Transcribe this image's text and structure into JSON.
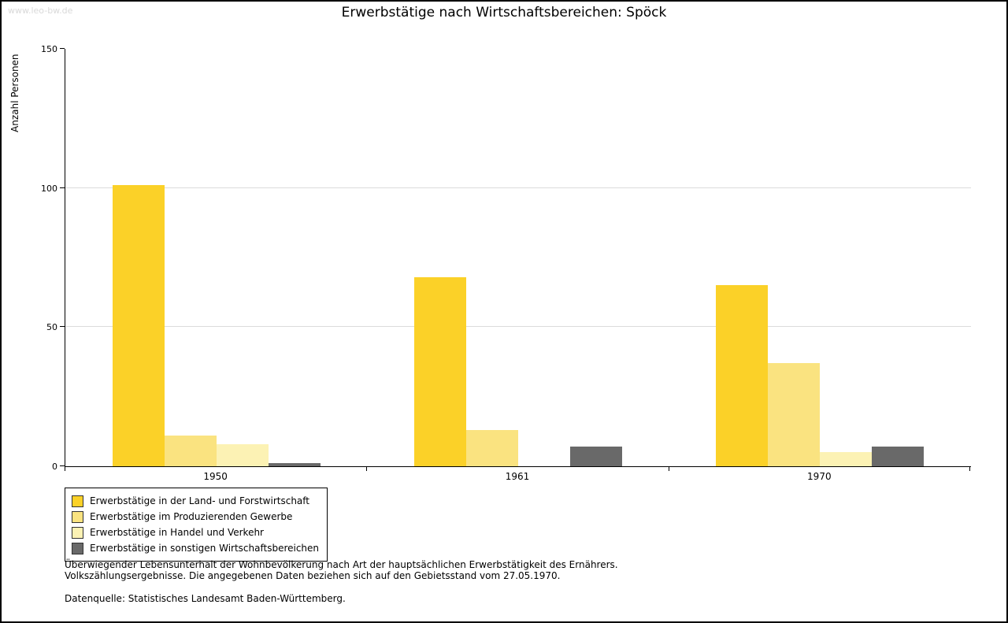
{
  "watermark": "www.leo-bw.de",
  "title": "Erwerbstätige nach Wirtschaftsbereichen: Spöck",
  "chart_data": {
    "type": "bar",
    "title": "Erwerbstätige nach Wirtschaftsbereichen: Spöck",
    "xlabel": "",
    "ylabel": "Anzahl Personen",
    "ylim": [
      0,
      150
    ],
    "yticks": [
      0,
      50,
      100,
      150
    ],
    "grid": true,
    "legend_position": "bottom-left",
    "categories": [
      "1950",
      "1961",
      "1970"
    ],
    "series": [
      {
        "name": "Erwerbstätige in der Land- und Forstwirtschaft",
        "color": "#FBD128",
        "values": [
          101,
          68,
          65
        ]
      },
      {
        "name": "Erwerbstätige im Produzierenden Gewerbe",
        "color": "#FAE380",
        "values": [
          11,
          13,
          37
        ]
      },
      {
        "name": "Erwerbstätige in Handel und Verkehr",
        "color": "#FCF2B4",
        "values": [
          8,
          0,
          5
        ]
      },
      {
        "name": "Erwerbstätige in sonstigen Wirtschaftsbereichen",
        "color": "#696969",
        "values": [
          1,
          7,
          7
        ]
      }
    ]
  },
  "footnotes": {
    "line1": "Überwiegender Lebensunterhalt der Wohnbevölkerung nach Art der hauptsächlichen Erwerbstätigkeit des Ernährers.",
    "line2": "Volkszählungsergebnisse. Die angegebenen Daten beziehen sich auf den Gebietsstand vom 27.05.1970.",
    "source": "Datenquelle: Statistisches Landesamt Baden-Württemberg."
  }
}
